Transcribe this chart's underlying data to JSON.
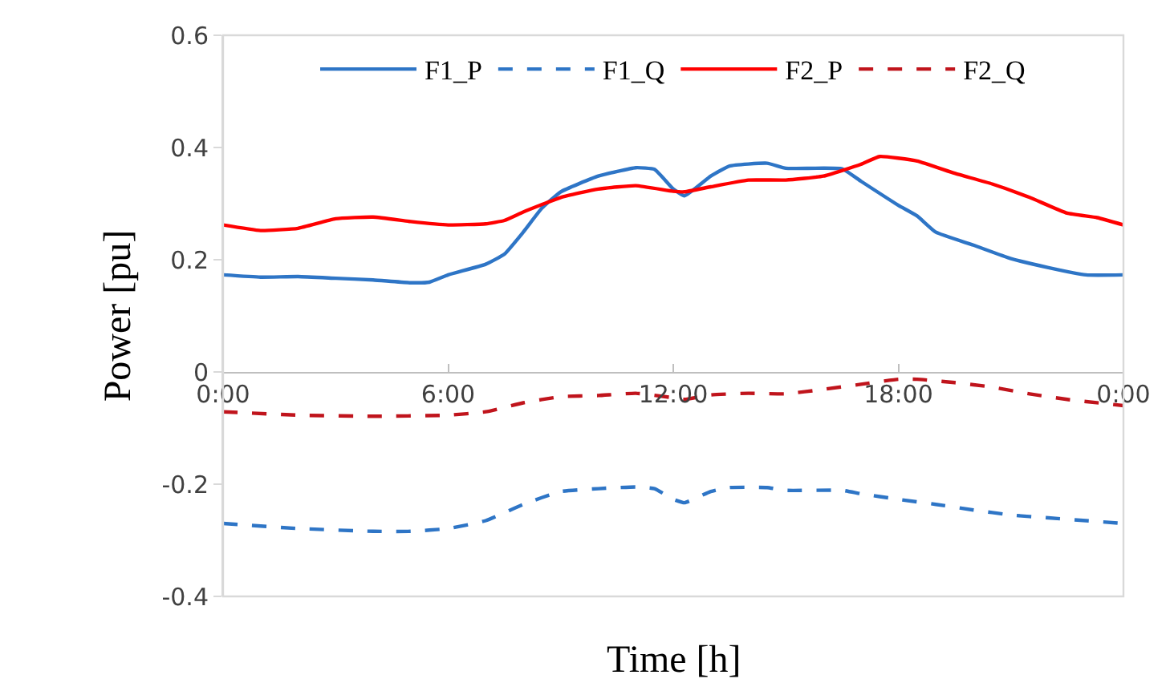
{
  "chart_data": {
    "type": "line",
    "xlabel": "Time [h]",
    "ylabel": "Power [pu]",
    "xlim": [
      0,
      24
    ],
    "xticks": [
      {
        "value": 0,
        "label": "0:00"
      },
      {
        "value": 6,
        "label": "6:00"
      },
      {
        "value": 12,
        "label": "12:00"
      },
      {
        "value": 18,
        "label": "18:00"
      },
      {
        "value": 24,
        "label": "0:00"
      }
    ],
    "ylim": [
      -0.4,
      0.6
    ],
    "yticks": [
      {
        "value": -0.4,
        "label": "-0.4"
      },
      {
        "value": -0.2,
        "label": "-0.2"
      },
      {
        "value": 0,
        "label": "0"
      },
      {
        "value": 0.2,
        "label": "0.2"
      },
      {
        "value": 0.4,
        "label": "0.4"
      },
      {
        "value": 0.6,
        "label": "0.6"
      }
    ],
    "legend": "top",
    "marker": "none",
    "series": [
      {
        "name": "F1_P",
        "color": "#2e75c6",
        "line_style": "solid",
        "x": [
          0,
          1,
          2,
          3,
          4,
          5,
          5.5,
          6,
          7,
          7.5,
          8,
          8.5,
          9,
          10,
          11,
          11.5,
          12,
          12.3,
          13,
          13.5,
          14.5,
          15,
          16.5,
          17,
          18,
          18.5,
          19,
          20,
          21,
          22,
          23,
          24
        ],
        "values": [
          0.173,
          0.169,
          0.17,
          0.167,
          0.164,
          0.159,
          0.16,
          0.173,
          0.192,
          0.21,
          0.249,
          0.292,
          0.321,
          0.349,
          0.364,
          0.361,
          0.326,
          0.314,
          0.349,
          0.367,
          0.372,
          0.363,
          0.362,
          0.34,
          0.297,
          0.278,
          0.249,
          0.226,
          0.202,
          0.186,
          0.173,
          0.173
        ]
      },
      {
        "name": "F1_Q",
        "color": "#2e75c6",
        "line_style": "dashed",
        "x": [
          0,
          2,
          4,
          5,
          6,
          7,
          8,
          9,
          10,
          11,
          11.5,
          12,
          12.3,
          13,
          13.5,
          14.5,
          15,
          16.5,
          17,
          18,
          19,
          20,
          21,
          22,
          23,
          24
        ],
        "values": [
          -0.27,
          -0.279,
          -0.284,
          -0.284,
          -0.279,
          -0.265,
          -0.236,
          -0.213,
          -0.208,
          -0.205,
          -0.208,
          -0.227,
          -0.233,
          -0.213,
          -0.206,
          -0.206,
          -0.211,
          -0.211,
          -0.217,
          -0.227,
          -0.236,
          -0.246,
          -0.255,
          -0.26,
          -0.265,
          -0.27
        ]
      },
      {
        "name": "F2_P",
        "color": "#ff0000",
        "line_style": "solid",
        "x": [
          0,
          1,
          2,
          3,
          4,
          5,
          6,
          7,
          7.5,
          8,
          9,
          10,
          11,
          12,
          12.3,
          13,
          14,
          15,
          16,
          17,
          17.5,
          18.5,
          19.5,
          20.5,
          21.5,
          22.5,
          23.3,
          24
        ],
        "values": [
          0.262,
          0.252,
          0.256,
          0.273,
          0.276,
          0.268,
          0.262,
          0.264,
          0.27,
          0.285,
          0.311,
          0.326,
          0.332,
          0.322,
          0.321,
          0.33,
          0.342,
          0.342,
          0.349,
          0.37,
          0.384,
          0.376,
          0.354,
          0.335,
          0.311,
          0.283,
          0.275,
          0.262
        ]
      },
      {
        "name": "F2_Q",
        "color": "#c0141c",
        "line_style": "dashed",
        "x": [
          0,
          2,
          4,
          6,
          7,
          8,
          9,
          10,
          11,
          12,
          12.3,
          13,
          14,
          15,
          16,
          17,
          18,
          18.5,
          19.5,
          20.5,
          21.5,
          22.5,
          24
        ],
        "values": [
          -0.071,
          -0.077,
          -0.079,
          -0.077,
          -0.071,
          -0.055,
          -0.044,
          -0.042,
          -0.038,
          -0.046,
          -0.049,
          -0.041,
          -0.038,
          -0.039,
          -0.031,
          -0.022,
          -0.013,
          -0.013,
          -0.019,
          -0.027,
          -0.039,
          -0.049,
          -0.06
        ]
      }
    ]
  }
}
